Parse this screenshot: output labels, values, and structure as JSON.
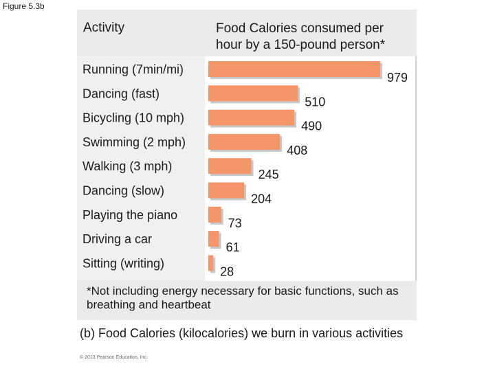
{
  "figure_label": "Figure 5.3b",
  "header": {
    "activity_label": "Activity",
    "calories_label": "Food Calories consumed per hour by a 150-pound person*"
  },
  "footnote": "*Not including energy necessary for basic functions, such as breathing and heartbeat",
  "caption": "(b) Food Calories (kilocalories) we burn in various activities",
  "copyright": "© 2013 Pearson Education, Inc.",
  "colors": {
    "bar": "#f4956a",
    "bar_shadow": "#c8c8c8"
  },
  "chart_data": {
    "type": "bar",
    "orientation": "horizontal",
    "title": "Food Calories consumed per hour by a 150-pound person*",
    "categories": [
      "Running (7min/mi)",
      "Dancing (fast)",
      "Bicycling (10 mph)",
      "Swimming (2 mph)",
      "Walking (3 mph)",
      "Dancing (slow)",
      "Playing the piano",
      "Driving a car",
      "Sitting (writing)"
    ],
    "values": [
      979,
      510,
      490,
      408,
      245,
      204,
      73,
      61,
      28
    ],
    "xlim": [
      0,
      979
    ],
    "grid": false,
    "legend": "none"
  }
}
